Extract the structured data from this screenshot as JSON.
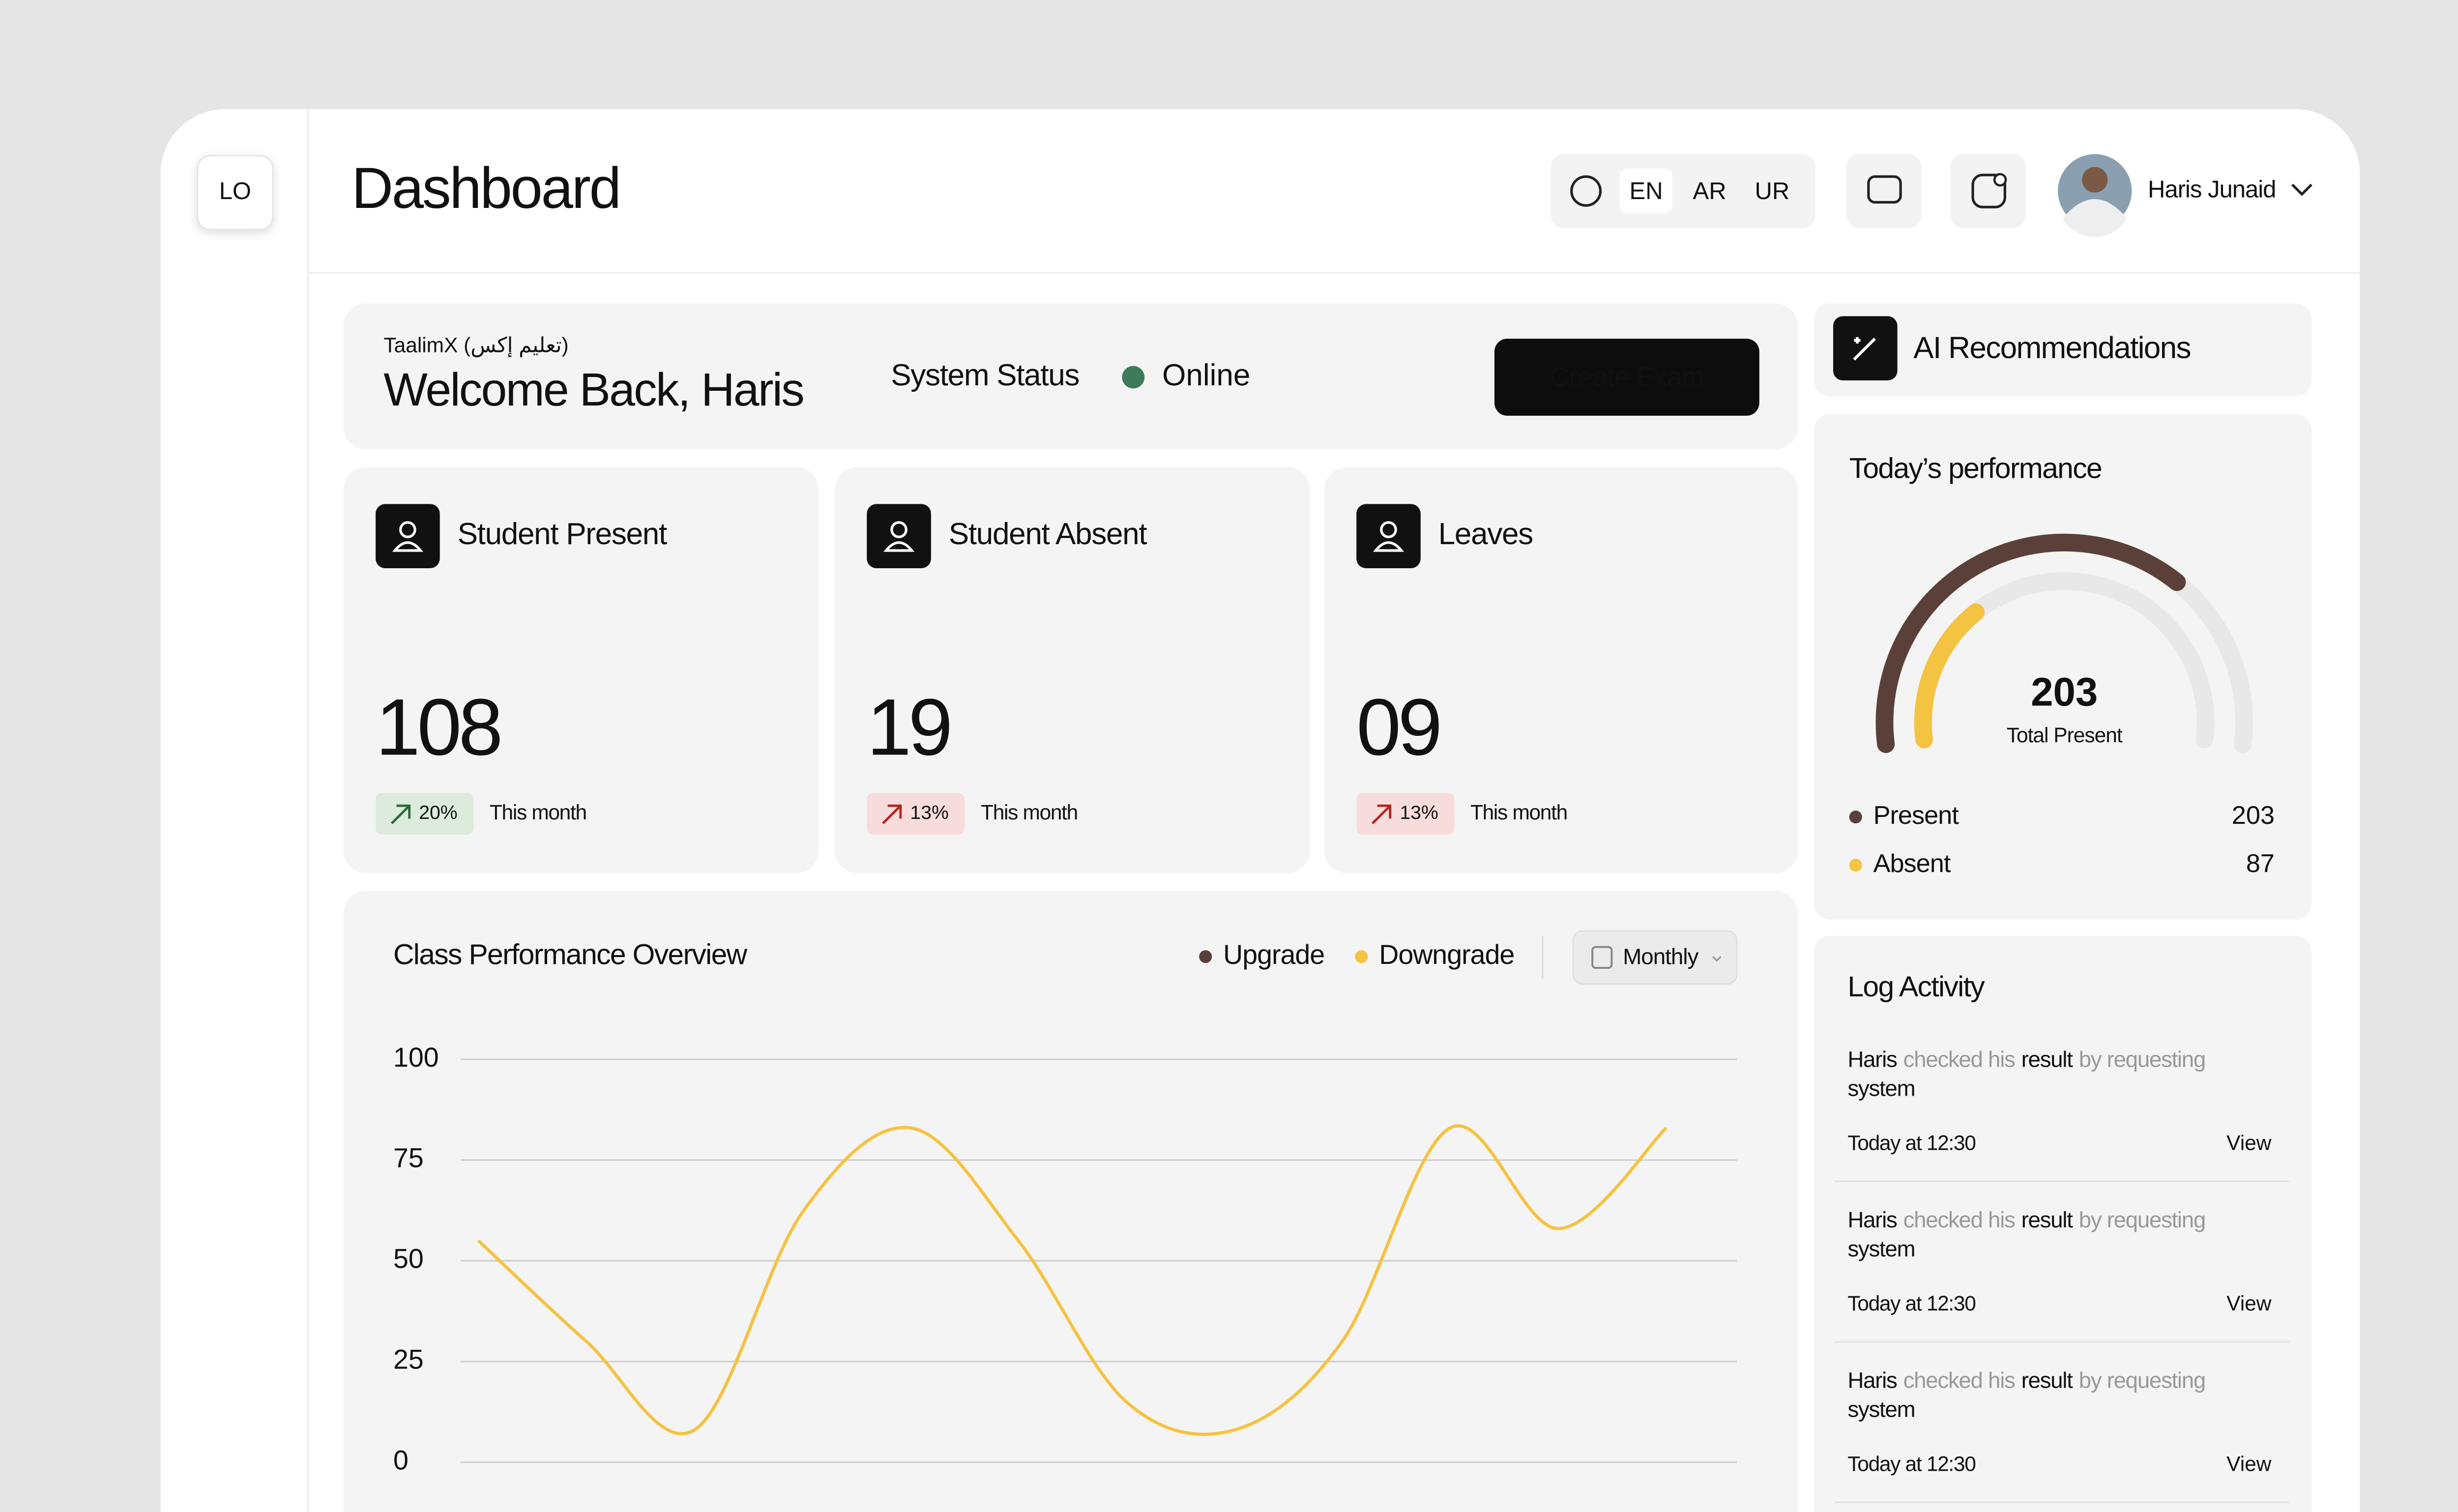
{
  "sidebar": {
    "logo": "LO"
  },
  "header": {
    "title": "Dashboard",
    "languages": [
      "EN",
      "AR",
      "UR"
    ],
    "user": "Haris Junaid"
  },
  "welcome": {
    "brand": "TaalimX (تعليم إكس)",
    "greeting": "Welcome Back, Haris",
    "status_label": "System Status",
    "status": "Online",
    "button": "Create Exam"
  },
  "stats": [
    {
      "label": "Student Present",
      "value": "108",
      "change": "20%",
      "period": "This month",
      "badge_color": "#2e6b34"
    },
    {
      "label": "Student Absent",
      "value": "19",
      "change": "13%",
      "period": "This month",
      "badge_color": "#b3261e"
    },
    {
      "label": "Leaves",
      "value": "09",
      "change": "13%",
      "period": "This month",
      "badge_color": "#b3261e"
    }
  ],
  "chart_data": {
    "type": "line",
    "title": "Class Performance Overview",
    "filter": "Monthly",
    "categories": [
      null,
      null,
      null,
      null,
      null,
      null,
      null,
      null,
      null,
      null,
      null,
      null
    ],
    "series": [
      {
        "name": "Upgrade",
        "color": "#5b4039",
        "values": [
          null,
          null,
          null,
          null,
          null,
          null,
          null,
          null,
          null,
          null,
          null,
          null
        ]
      },
      {
        "name": "Downgrade",
        "color": "#f5c342",
        "values": [
          55,
          30,
          8,
          62,
          83,
          55,
          15,
          8,
          30,
          83,
          58,
          83
        ]
      }
    ],
    "ylim": [
      0,
      100
    ],
    "yticks": [
      0,
      25,
      50,
      75,
      100
    ],
    "grid": true
  },
  "ai": {
    "title": "AI Recommendations"
  },
  "performance": {
    "title": "Today’s performance",
    "center_label": "Total Present",
    "items": [
      {
        "name": "Present",
        "value": 203,
        "color": "#5b4039"
      },
      {
        "name": "Absent",
        "value": 87,
        "color": "#f5c342"
      }
    ]
  },
  "log": {
    "title": "Log Activity",
    "entries": [
      {
        "actor": "Haris",
        "action": "checked his",
        "object": "result",
        "detail": "by requesting",
        "detail_end": "system",
        "time": "Today at 12:30",
        "link": "View"
      },
      {
        "actor": "Haris",
        "action": "checked his",
        "object": "result",
        "detail": "by requesting",
        "detail_end": "system",
        "time": "Today at 12:30",
        "link": "View"
      },
      {
        "actor": "Haris",
        "action": "checked his",
        "object": "result",
        "detail": "by requesting",
        "detail_end": "system",
        "time": "Today at 12:30",
        "link": "View"
      }
    ]
  }
}
